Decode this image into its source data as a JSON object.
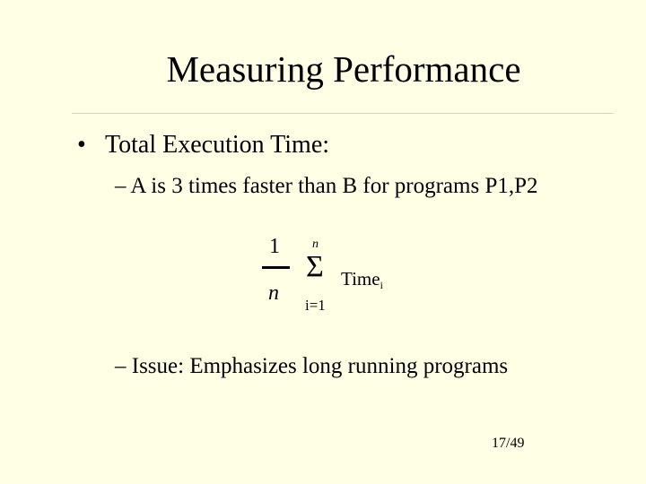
{
  "slide": {
    "title": "Measuring Performance",
    "bullet_symbol": "•",
    "bullet_text": "Total Execution Time:",
    "sub_points": [
      "– A is 3 times faster than B for programs P1,P2",
      "– Issue: Emphasizes long running programs"
    ],
    "formula": {
      "numerator": "1",
      "denominator": "n",
      "upper_limit": "n",
      "sigma": "Σ",
      "lower_limit": "i=1",
      "term": "Time",
      "term_subscript": "i"
    },
    "page_number": "17/49"
  },
  "colors": {
    "background": "#ffffe6",
    "rule": "#d8d3b6",
    "text": "#000000"
  }
}
